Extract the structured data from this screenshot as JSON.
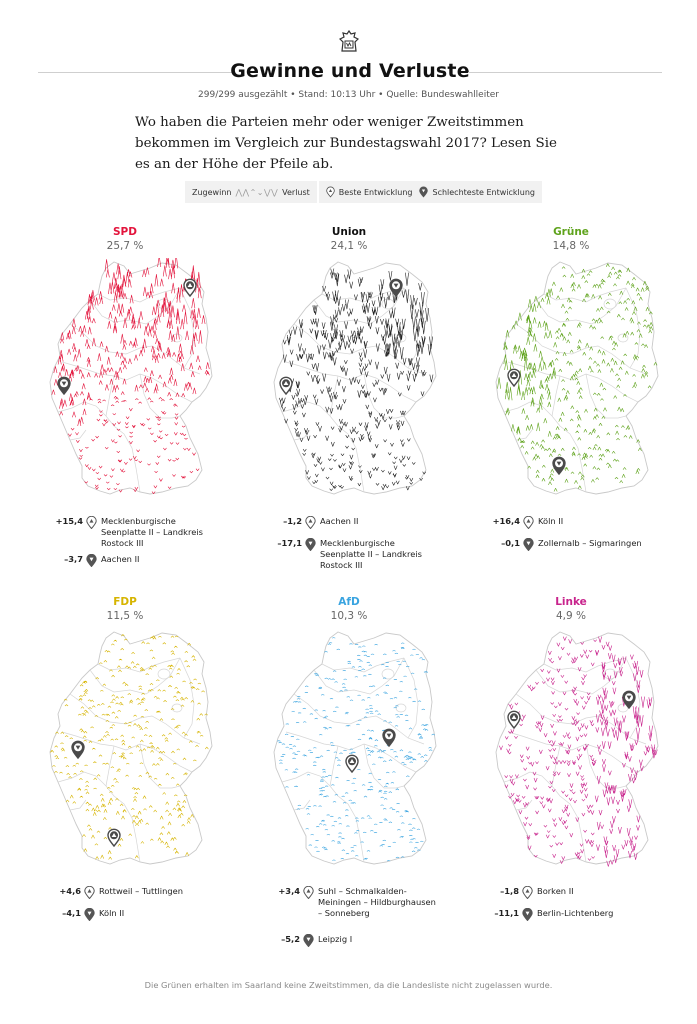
{
  "header": {
    "logo_icon": "newspaper-logo-icon",
    "title": "Gewinne und Verluste",
    "subline": "299/299 ausgezählt • Stand: 10:13 Uhr • Quelle: Bundeswahlleiter",
    "intro": "Wo haben die Parteien mehr oder weniger Zweitstimmen bekommen im Vergleich zur Bundestagswahl 2017? Lesen Sie es an der Höhe der Pfeile ab."
  },
  "legend": {
    "gain_label": "Zugewinn",
    "loss_label": "Verlust",
    "best_label": "Beste Entwicklung",
    "worst_label": "Schlechteste Entwicklung"
  },
  "parties": [
    {
      "name": "SPD",
      "color": "#e3143c",
      "value": "25,7",
      "best": {
        "value": "+15,4",
        "place": "Mecklenburgische Seenplatte II – Landkreis Rostock III"
      },
      "worst": {
        "value": "–3,7",
        "place": "Aachen II"
      }
    },
    {
      "name": "Union",
      "color": "#222222",
      "value": "24,1",
      "best": {
        "value": "–1,2",
        "place": "Aachen II"
      },
      "worst": {
        "value": "–17,1",
        "place": "Mecklenburgische Seenplatte II – Landkreis Rostock III"
      }
    },
    {
      "name": "Grüne",
      "color": "#5fa31c",
      "value": "14,8",
      "best": {
        "value": "+16,4",
        "place": "Köln II"
      },
      "worst": {
        "value": "–0,1",
        "place": "Zollernalb – Sigmaringen"
      }
    },
    {
      "name": "FDP",
      "color": "#d6b400",
      "value": "11,5",
      "best": {
        "value": "+4,6",
        "place": "Rottweil – Tuttlingen"
      },
      "worst": {
        "value": "–4,1",
        "place": "Köln II"
      }
    },
    {
      "name": "AfD",
      "color": "#3aa4e0",
      "value": "10,3",
      "best": {
        "value": "+3,4",
        "place": "Suhl – Schmalkalden-Meiningen – Hildburghausen – Sonneberg"
      },
      "worst": {
        "value": "–5,2",
        "place": "Leipzig I"
      }
    },
    {
      "name": "Linke",
      "color": "#c8238c",
      "value": "4,9",
      "best": {
        "value": "–1,8",
        "place": "Borken II"
      },
      "worst": {
        "value": "–11,1",
        "place": "Berlin-Lichtenberg"
      }
    }
  ],
  "footnote": "Die Grünen erhalten im Saarland keine Zweitstimmen, da die Landesliste nicht zugelassen wurde."
}
